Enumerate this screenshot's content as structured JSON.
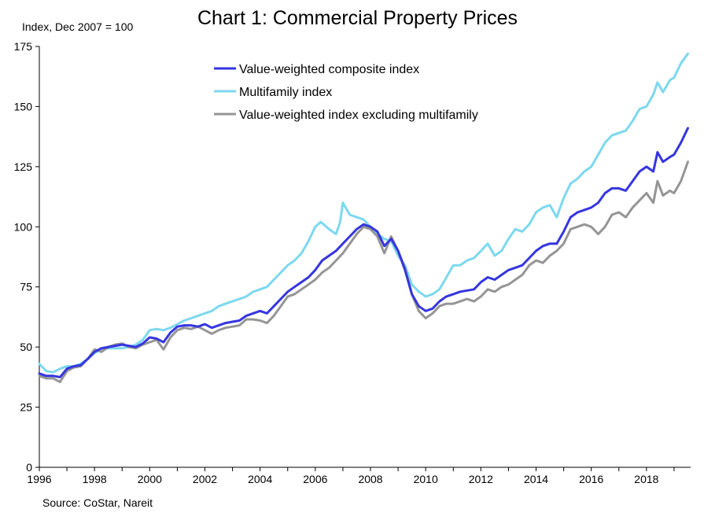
{
  "chart_data": {
    "type": "line",
    "title": "Chart 1: Commercial Property Prices",
    "ylabel": "Index,  Dec 2007 = 100",
    "xlabel": "",
    "source": "Source:  CoStar, Nareit",
    "ylim": [
      0,
      175
    ],
    "xlim": [
      1996,
      2019.6
    ],
    "yticks": [
      0,
      25,
      50,
      75,
      100,
      125,
      150,
      175
    ],
    "xticks": [
      1996,
      1998,
      2000,
      2002,
      2004,
      2006,
      2008,
      2010,
      2012,
      2014,
      2016,
      2018
    ],
    "grid": false,
    "legend": "top-left",
    "series": [
      {
        "name": "Value-weighted composite index",
        "color": "#3535e0",
        "points": [
          [
            1996.0,
            39
          ],
          [
            1996.25,
            38
          ],
          [
            1996.5,
            38
          ],
          [
            1996.75,
            37.5
          ],
          [
            1997.0,
            41
          ],
          [
            1997.25,
            42
          ],
          [
            1997.5,
            42.5
          ],
          [
            1997.75,
            45
          ],
          [
            1998.0,
            48
          ],
          [
            1998.25,
            49.5
          ],
          [
            1998.5,
            50
          ],
          [
            1998.75,
            50.5
          ],
          [
            1999.0,
            51
          ],
          [
            1999.25,
            50.5
          ],
          [
            1999.5,
            50
          ],
          [
            1999.75,
            51.5
          ],
          [
            2000.0,
            54
          ],
          [
            2000.25,
            53.5
          ],
          [
            2000.5,
            52
          ],
          [
            2000.75,
            56
          ],
          [
            2001.0,
            58.5
          ],
          [
            2001.25,
            59
          ],
          [
            2001.5,
            59
          ],
          [
            2001.75,
            58.5
          ],
          [
            2002.0,
            59.5
          ],
          [
            2002.25,
            58
          ],
          [
            2002.5,
            59
          ],
          [
            2002.75,
            60
          ],
          [
            2003.0,
            60.5
          ],
          [
            2003.25,
            61
          ],
          [
            2003.5,
            63
          ],
          [
            2003.75,
            64
          ],
          [
            2004.0,
            65
          ],
          [
            2004.25,
            64
          ],
          [
            2004.5,
            67
          ],
          [
            2004.75,
            70
          ],
          [
            2005.0,
            73
          ],
          [
            2005.25,
            75
          ],
          [
            2005.5,
            77
          ],
          [
            2005.75,
            79
          ],
          [
            2006.0,
            82
          ],
          [
            2006.25,
            86
          ],
          [
            2006.5,
            88
          ],
          [
            2006.75,
            90
          ],
          [
            2007.0,
            93
          ],
          [
            2007.25,
            96
          ],
          [
            2007.5,
            99
          ],
          [
            2007.75,
            101
          ],
          [
            2008.0,
            100
          ],
          [
            2008.25,
            98
          ],
          [
            2008.5,
            92
          ],
          [
            2008.75,
            95
          ],
          [
            2009.0,
            90
          ],
          [
            2009.25,
            82
          ],
          [
            2009.5,
            72
          ],
          [
            2009.75,
            67
          ],
          [
            2010.0,
            65
          ],
          [
            2010.25,
            66
          ],
          [
            2010.5,
            69
          ],
          [
            2010.75,
            71
          ],
          [
            2011.0,
            72
          ],
          [
            2011.25,
            73
          ],
          [
            2011.5,
            73.5
          ],
          [
            2011.75,
            74
          ],
          [
            2012.0,
            77
          ],
          [
            2012.25,
            79
          ],
          [
            2012.5,
            78
          ],
          [
            2012.75,
            80
          ],
          [
            2013.0,
            82
          ],
          [
            2013.25,
            83
          ],
          [
            2013.5,
            84
          ],
          [
            2013.75,
            87
          ],
          [
            2014.0,
            90
          ],
          [
            2014.25,
            92
          ],
          [
            2014.5,
            93
          ],
          [
            2014.75,
            93
          ],
          [
            2015.0,
            98
          ],
          [
            2015.25,
            104
          ],
          [
            2015.5,
            106
          ],
          [
            2015.75,
            107
          ],
          [
            2016.0,
            108
          ],
          [
            2016.25,
            110
          ],
          [
            2016.5,
            114
          ],
          [
            2016.75,
            116
          ],
          [
            2017.0,
            116
          ],
          [
            2017.25,
            115
          ],
          [
            2017.5,
            119
          ],
          [
            2017.75,
            123
          ],
          [
            2018.0,
            125
          ],
          [
            2018.25,
            123
          ],
          [
            2018.4,
            131
          ],
          [
            2018.6,
            127
          ],
          [
            2018.85,
            129
          ],
          [
            2019.0,
            130
          ],
          [
            2019.25,
            135
          ],
          [
            2019.5,
            141
          ]
        ]
      },
      {
        "name": "Multifamily index",
        "color": "#7dd8ee",
        "points": [
          [
            1996.0,
            43
          ],
          [
            1996.25,
            40
          ],
          [
            1996.5,
            39.5
          ],
          [
            1996.75,
            41
          ],
          [
            1997.0,
            42
          ],
          [
            1997.25,
            42
          ],
          [
            1997.5,
            43
          ],
          [
            1997.75,
            45
          ],
          [
            1998.0,
            47.5
          ],
          [
            1998.25,
            49
          ],
          [
            1998.5,
            49.5
          ],
          [
            1998.75,
            49.5
          ],
          [
            1999.0,
            49.5
          ],
          [
            1999.25,
            50
          ],
          [
            1999.5,
            51
          ],
          [
            1999.75,
            53
          ],
          [
            2000.0,
            57
          ],
          [
            2000.25,
            57.5
          ],
          [
            2000.5,
            57
          ],
          [
            2000.75,
            58
          ],
          [
            2001.0,
            59.5
          ],
          [
            2001.25,
            61
          ],
          [
            2001.5,
            62
          ],
          [
            2001.75,
            63
          ],
          [
            2002.0,
            64
          ],
          [
            2002.25,
            65
          ],
          [
            2002.5,
            67
          ],
          [
            2002.75,
            68
          ],
          [
            2003.0,
            69
          ],
          [
            2003.25,
            70
          ],
          [
            2003.5,
            71
          ],
          [
            2003.75,
            73
          ],
          [
            2004.0,
            74
          ],
          [
            2004.25,
            75
          ],
          [
            2004.5,
            78
          ],
          [
            2004.75,
            81
          ],
          [
            2005.0,
            84
          ],
          [
            2005.25,
            86
          ],
          [
            2005.5,
            89
          ],
          [
            2005.75,
            94
          ],
          [
            2006.0,
            100
          ],
          [
            2006.2,
            102
          ],
          [
            2006.5,
            99
          ],
          [
            2006.75,
            97
          ],
          [
            2006.9,
            102
          ],
          [
            2007.0,
            110
          ],
          [
            2007.25,
            105
          ],
          [
            2007.5,
            104
          ],
          [
            2007.75,
            103
          ],
          [
            2008.0,
            100
          ],
          [
            2008.25,
            97
          ],
          [
            2008.5,
            95
          ],
          [
            2008.75,
            94
          ],
          [
            2009.0,
            88
          ],
          [
            2009.25,
            84
          ],
          [
            2009.5,
            76
          ],
          [
            2009.75,
            73
          ],
          [
            2010.0,
            71
          ],
          [
            2010.25,
            72
          ],
          [
            2010.5,
            74
          ],
          [
            2010.75,
            79
          ],
          [
            2011.0,
            84
          ],
          [
            2011.25,
            84
          ],
          [
            2011.5,
            86
          ],
          [
            2011.75,
            87
          ],
          [
            2012.0,
            90
          ],
          [
            2012.25,
            93
          ],
          [
            2012.5,
            88
          ],
          [
            2012.75,
            90
          ],
          [
            2013.0,
            95
          ],
          [
            2013.25,
            99
          ],
          [
            2013.5,
            98
          ],
          [
            2013.75,
            101
          ],
          [
            2014.0,
            106
          ],
          [
            2014.25,
            108
          ],
          [
            2014.5,
            109
          ],
          [
            2014.75,
            104
          ],
          [
            2015.0,
            112
          ],
          [
            2015.25,
            118
          ],
          [
            2015.5,
            120
          ],
          [
            2015.75,
            123
          ],
          [
            2016.0,
            125
          ],
          [
            2016.25,
            130
          ],
          [
            2016.5,
            135
          ],
          [
            2016.75,
            138
          ],
          [
            2017.0,
            139
          ],
          [
            2017.25,
            140
          ],
          [
            2017.5,
            144
          ],
          [
            2017.75,
            149
          ],
          [
            2018.0,
            150
          ],
          [
            2018.25,
            155
          ],
          [
            2018.4,
            160
          ],
          [
            2018.6,
            156
          ],
          [
            2018.85,
            161
          ],
          [
            2019.0,
            162
          ],
          [
            2019.25,
            168
          ],
          [
            2019.5,
            172
          ]
        ]
      },
      {
        "name": "Value-weighted index excluding multifamily",
        "color": "#959595",
        "points": [
          [
            1996.0,
            38
          ],
          [
            1996.25,
            37
          ],
          [
            1996.5,
            37
          ],
          [
            1996.75,
            35.5
          ],
          [
            1997.0,
            40
          ],
          [
            1997.25,
            41.5
          ],
          [
            1997.5,
            42
          ],
          [
            1997.75,
            45
          ],
          [
            1998.0,
            49
          ],
          [
            1998.25,
            48
          ],
          [
            1998.5,
            50
          ],
          [
            1998.75,
            51
          ],
          [
            1999.0,
            51.5
          ],
          [
            1999.25,
            50
          ],
          [
            1999.5,
            49.5
          ],
          [
            1999.75,
            51
          ],
          [
            2000.0,
            52
          ],
          [
            2000.25,
            53
          ],
          [
            2000.5,
            49
          ],
          [
            2000.75,
            54
          ],
          [
            2001.0,
            57
          ],
          [
            2001.25,
            58
          ],
          [
            2001.5,
            57.5
          ],
          [
            2001.75,
            58.5
          ],
          [
            2002.0,
            57
          ],
          [
            2002.25,
            55.5
          ],
          [
            2002.5,
            57
          ],
          [
            2002.75,
            58
          ],
          [
            2003.0,
            58.5
          ],
          [
            2003.25,
            59
          ],
          [
            2003.5,
            61.5
          ],
          [
            2003.75,
            61.5
          ],
          [
            2004.0,
            61
          ],
          [
            2004.25,
            60
          ],
          [
            2004.5,
            63
          ],
          [
            2004.75,
            67
          ],
          [
            2005.0,
            71
          ],
          [
            2005.25,
            72
          ],
          [
            2005.5,
            74
          ],
          [
            2005.75,
            76
          ],
          [
            2006.0,
            78
          ],
          [
            2006.25,
            81
          ],
          [
            2006.5,
            83
          ],
          [
            2006.75,
            86
          ],
          [
            2007.0,
            89
          ],
          [
            2007.25,
            93
          ],
          [
            2007.5,
            97
          ],
          [
            2007.75,
            100
          ],
          [
            2008.0,
            99
          ],
          [
            2008.25,
            96
          ],
          [
            2008.5,
            89
          ],
          [
            2008.75,
            96
          ],
          [
            2009.0,
            90
          ],
          [
            2009.25,
            83
          ],
          [
            2009.5,
            72
          ],
          [
            2009.75,
            65
          ],
          [
            2010.0,
            62
          ],
          [
            2010.25,
            64
          ],
          [
            2010.5,
            67
          ],
          [
            2010.75,
            68
          ],
          [
            2011.0,
            68
          ],
          [
            2011.25,
            69
          ],
          [
            2011.5,
            70
          ],
          [
            2011.75,
            69
          ],
          [
            2012.0,
            71
          ],
          [
            2012.25,
            74
          ],
          [
            2012.5,
            73
          ],
          [
            2012.75,
            75
          ],
          [
            2013.0,
            76
          ],
          [
            2013.25,
            78
          ],
          [
            2013.5,
            80
          ],
          [
            2013.75,
            84
          ],
          [
            2014.0,
            86
          ],
          [
            2014.25,
            85
          ],
          [
            2014.5,
            88
          ],
          [
            2014.75,
            90
          ],
          [
            2015.0,
            93
          ],
          [
            2015.25,
            99
          ],
          [
            2015.5,
            100
          ],
          [
            2015.75,
            101
          ],
          [
            2016.0,
            100
          ],
          [
            2016.25,
            97
          ],
          [
            2016.5,
            100
          ],
          [
            2016.75,
            105
          ],
          [
            2017.0,
            106
          ],
          [
            2017.25,
            104
          ],
          [
            2017.5,
            108
          ],
          [
            2017.75,
            111
          ],
          [
            2018.0,
            114
          ],
          [
            2018.25,
            110
          ],
          [
            2018.4,
            119
          ],
          [
            2018.6,
            113
          ],
          [
            2018.85,
            115
          ],
          [
            2019.0,
            114
          ],
          [
            2019.25,
            119
          ],
          [
            2019.5,
            127
          ]
        ]
      }
    ]
  }
}
